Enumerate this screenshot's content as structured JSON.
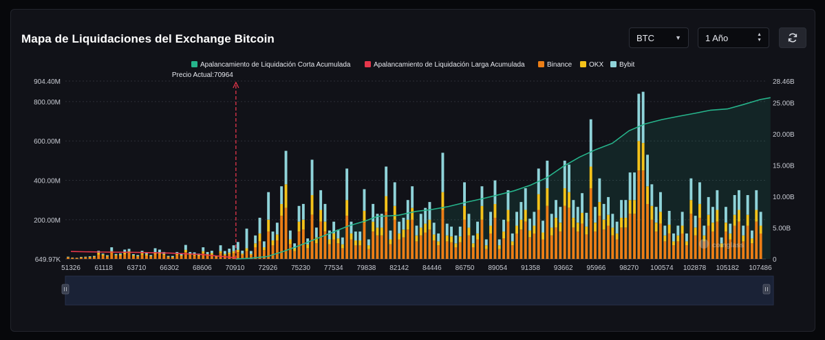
{
  "header": {
    "title": "Mapa de Liquidaciones del Exchange Bitcoin",
    "coin_select": "BTC",
    "range_select": "1 Año"
  },
  "watermark": "coinglass",
  "colors": {
    "short": "#26b58c",
    "long": "#e5364b",
    "binance": "#ec7e16",
    "okx": "#f4c21a",
    "bybit": "#8fd3d9",
    "grid": "#2e3038",
    "marker": "#e5364b"
  },
  "chart_data": {
    "type": "bar",
    "title": "Mapa de Liquidaciones del Exchange Bitcoin",
    "legend": [
      "Apalancamiento de Liquidación Corta Acumulada",
      "Apalancamiento de Liquidación Larga Acumulada",
      "Binance",
      "OKX",
      "Bybit"
    ],
    "legend_position": "top-center",
    "current_price_label": "Precio Actual:70964",
    "current_price": 70964,
    "x_tick_labels": [
      "51326",
      "61118",
      "63710",
      "66302",
      "68606",
      "70910",
      "72926",
      "75230",
      "77534",
      "79838",
      "82142",
      "84446",
      "86750",
      "89054",
      "91358",
      "93662",
      "95966",
      "98270",
      "100574",
      "102878",
      "105182",
      "107486"
    ],
    "y_left_ticks": [
      "904.40M",
      "800.00M",
      "600.00M",
      "400.00M",
      "200.00M",
      "649.97K"
    ],
    "y_right_ticks": [
      "28.46B",
      "25.00B",
      "20.00B",
      "15.00B",
      "10.00B",
      "5.00B",
      "0"
    ],
    "y_left_range_millions": [
      0.65,
      904.4
    ],
    "y_right_range_billions": [
      0,
      28.46
    ],
    "grid": true,
    "has_zoom_slider": true,
    "bars_millions": {
      "binance": [
        8,
        6,
        5,
        7,
        8,
        8,
        10,
        22,
        18,
        12,
        30,
        16,
        18,
        25,
        30,
        15,
        12,
        22,
        18,
        12,
        25,
        25,
        20,
        10,
        8,
        20,
        15,
        35,
        20,
        18,
        15,
        30,
        20,
        22,
        10,
        30,
        20,
        25,
        30,
        35,
        22,
        40,
        20,
        60,
        90,
        45,
        140,
        70,
        95,
        220,
        260,
        75,
        40,
        140,
        150,
        55,
        225,
        80,
        190,
        140,
        75,
        100,
        80,
        55,
        220,
        100,
        70,
        70,
        185,
        50,
        140,
        120,
        120,
        240,
        75,
        200,
        100,
        110,
        150,
        200,
        90,
        120,
        135,
        150,
        95,
        70,
        250,
        90,
        85,
        60,
        85,
        200,
        120,
        60,
        100,
        200,
        50,
        130,
        210,
        50,
        105,
        190,
        70,
        130,
        150,
        190,
        110,
        130,
        250,
        100,
        270,
        120,
        160,
        140,
        270,
        260,
        160,
        140,
        180,
        125,
        360,
        140,
        220,
        150,
        170,
        120,
        100,
        160,
        160,
        230,
        230,
        450,
        450,
        280,
        200,
        140,
        180,
        90,
        130,
        70,
        90,
        130,
        70,
        230,
        120,
        210,
        90,
        170,
        140,
        190,
        60,
        140,
        100,
        170,
        190,
        90,
        170,
        80,
        190,
        130
      ],
      "okx": [
        2,
        1,
        1,
        2,
        2,
        3,
        3,
        10,
        6,
        4,
        10,
        5,
        6,
        8,
        10,
        5,
        4,
        8,
        6,
        4,
        10,
        8,
        6,
        3,
        3,
        6,
        5,
        12,
        6,
        6,
        5,
        10,
        6,
        8,
        3,
        10,
        6,
        8,
        10,
        12,
        6,
        15,
        6,
        20,
        40,
        15,
        60,
        25,
        30,
        60,
        120,
        25,
        15,
        50,
        50,
        20,
        100,
        30,
        60,
        50,
        25,
        30,
        25,
        20,
        80,
        30,
        25,
        25,
        60,
        20,
        50,
        40,
        40,
        80,
        25,
        70,
        30,
        40,
        50,
        60,
        30,
        40,
        45,
        50,
        30,
        20,
        90,
        30,
        30,
        20,
        30,
        70,
        40,
        20,
        30,
        70,
        20,
        40,
        70,
        20,
        35,
        60,
        20,
        40,
        50,
        60,
        35,
        40,
        80,
        35,
        90,
        40,
        50,
        45,
        90,
        80,
        50,
        45,
        55,
        40,
        110,
        45,
        70,
        50,
        55,
        40,
        30,
        50,
        50,
        70,
        70,
        150,
        140,
        90,
        70,
        45,
        60,
        30,
        45,
        20,
        30,
        40,
        20,
        70,
        40,
        70,
        30,
        55,
        45,
        60,
        20,
        45,
        30,
        55,
        60,
        30,
        55,
        25,
        60,
        40
      ],
      "bybit": [
        2,
        1,
        1,
        2,
        2,
        3,
        3,
        10,
        4,
        4,
        20,
        5,
        5,
        15,
        12,
        5,
        5,
        12,
        8,
        5,
        20,
        15,
        10,
        3,
        5,
        10,
        10,
        25,
        10,
        10,
        8,
        20,
        10,
        12,
        5,
        30,
        15,
        20,
        30,
        40,
        15,
        100,
        15,
        40,
        80,
        30,
        140,
        45,
        60,
        90,
        170,
        45,
        25,
        80,
        80,
        30,
        180,
        50,
        100,
        90,
        45,
        60,
        45,
        35,
        160,
        60,
        45,
        45,
        110,
        30,
        90,
        70,
        70,
        150,
        45,
        120,
        60,
        60,
        100,
        110,
        50,
        70,
        80,
        90,
        60,
        40,
        200,
        60,
        50,
        40,
        50,
        120,
        70,
        40,
        60,
        100,
        30,
        70,
        120,
        30,
        60,
        100,
        40,
        70,
        90,
        110,
        60,
        70,
        130,
        60,
        140,
        70,
        90,
        80,
        140,
        140,
        90,
        80,
        100,
        70,
        240,
        80,
        120,
        80,
        90,
        70,
        60,
        90,
        90,
        140,
        140,
        240,
        260,
        160,
        110,
        80,
        100,
        50,
        70,
        40,
        50,
        70,
        40,
        110,
        60,
        110,
        50,
        90,
        80,
        100,
        30,
        80,
        50,
        100,
        100,
        50,
        100,
        40,
        100,
        70
      ]
    },
    "cumulative_short_billions": [
      [
        70964,
        0
      ],
      [
        71800,
        0.1
      ],
      [
        72900,
        0.4
      ],
      [
        74000,
        1.2
      ],
      [
        75200,
        2.2
      ],
      [
        76400,
        3.3
      ],
      [
        77500,
        4.3
      ],
      [
        78600,
        5.3
      ],
      [
        79800,
        6.1
      ],
      [
        80600,
        6.8
      ],
      [
        81500,
        6.9
      ],
      [
        82100,
        7.0
      ],
      [
        83300,
        7.6
      ],
      [
        84400,
        7.9
      ],
      [
        85600,
        8.4
      ],
      [
        86700,
        9.0
      ],
      [
        87900,
        9.6
      ],
      [
        89000,
        10.2
      ],
      [
        90200,
        10.9
      ],
      [
        91350,
        11.8
      ],
      [
        92500,
        13.0
      ],
      [
        93650,
        14.8
      ],
      [
        94800,
        16.3
      ],
      [
        95950,
        17.5
      ],
      [
        97100,
        18.5
      ],
      [
        98270,
        20.5
      ],
      [
        99400,
        21.6
      ],
      [
        100570,
        22.3
      ],
      [
        101700,
        22.8
      ],
      [
        102870,
        23.3
      ],
      [
        104000,
        23.8
      ],
      [
        105180,
        24.0
      ],
      [
        106300,
        24.7
      ],
      [
        107486,
        25.5
      ],
      [
        108200,
        25.8
      ]
    ],
    "cumulative_long_billions": [
      [
        51326,
        1.2
      ],
      [
        55000,
        1.15
      ],
      [
        61118,
        1.1
      ],
      [
        63710,
        1.05
      ],
      [
        66302,
        0.95
      ],
      [
        68606,
        0.7
      ],
      [
        70910,
        0.2
      ],
      [
        70964,
        0
      ]
    ]
  }
}
